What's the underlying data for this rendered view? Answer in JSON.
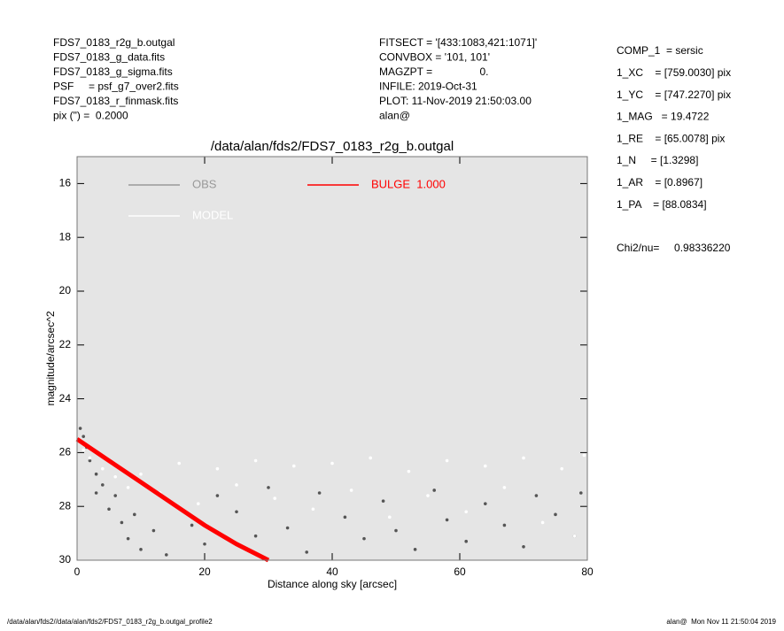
{
  "header": {
    "left": [
      "FDS7_0183_r2g_b.outgal",
      "FDS7_0183_g_data.fits",
      "FDS7_0183_g_sigma.fits",
      "PSF     = psf_g7_over2.fits",
      "FDS7_0183_r_finmask.fits",
      "pix (\") =  0.2000"
    ],
    "middle": [
      "FITSECT = '[433:1083,421:1071]'",
      "CONVBOX = '101, 101'",
      "MAGZPT =                0.",
      "INFILE: 2019-Oct-31",
      "PLOT: 11-Nov-2019 21:50:03.00",
      "alan@"
    ]
  },
  "parameters": [
    "COMP_1  = sersic",
    "1_XC    = [759.0030] pix",
    "1_YC    = [747.2270] pix",
    "1_MAG   = 19.4722",
    "1_RE    = [65.0078] pix",
    "1_N     = [1.3298]",
    "1_AR    = [0.8967]",
    "1_PA    = [88.0834]"
  ],
  "chi2": "Chi2/nu=     0.98336220",
  "footer": {
    "left": "/data/alan/fds2//data/alan/fds2/FDS7_0183_r2g_b.outgal_profile2",
    "right": "alan@  Mon Nov 11 21:50:04 2019"
  },
  "chart_data": {
    "type": "scatter",
    "title": "/data/alan/fds2/FDS7_0183_r2g_b.outgal",
    "xlabel": "Distance along sky [arcsec]",
    "ylabel": "magnitude/arcsec^2",
    "xlim": [
      0,
      80
    ],
    "ylim": [
      30,
      15
    ],
    "xticks": [
      0,
      20,
      40,
      60,
      80
    ],
    "yticks": [
      16,
      18,
      20,
      22,
      24,
      26,
      28,
      30
    ],
    "plot_background": "#e5e5e5",
    "series": [
      {
        "name": "OBS",
        "color": "#555555",
        "legend_color": "#999999",
        "x": [
          0.5,
          1,
          1.5,
          2,
          3,
          3,
          4,
          5,
          6,
          7,
          8,
          9,
          10,
          12,
          14,
          15,
          18,
          20,
          22,
          25,
          28,
          30,
          33,
          36,
          38,
          42,
          45,
          48,
          50,
          53,
          56,
          58,
          61,
          64,
          67,
          70,
          72,
          75,
          78,
          79
        ],
        "values": [
          25.1,
          25.4,
          25.8,
          26.3,
          26.8,
          27.5,
          27.2,
          28.1,
          27.6,
          28.6,
          29.2,
          28.3,
          29.6,
          28.9,
          29.8,
          27.9,
          28.7,
          29.4,
          27.6,
          28.2,
          29.1,
          27.3,
          28.8,
          29.7,
          27.5,
          28.4,
          29.2,
          27.8,
          28.9,
          29.6,
          27.4,
          28.5,
          29.3,
          27.9,
          28.7,
          29.5,
          27.6,
          28.3,
          29.1,
          27.5
        ]
      },
      {
        "name": "MODEL",
        "color": "#ffffff",
        "legend_color": "#ffffff",
        "x": [
          1,
          2,
          4,
          6,
          8,
          10,
          13,
          16,
          19,
          22,
          25,
          28,
          31,
          34,
          37,
          40,
          43,
          46,
          49,
          52,
          55,
          58,
          61,
          64,
          67,
          70,
          73,
          76,
          78,
          79.5
        ],
        "values": [
          25.9,
          26.2,
          26.6,
          26.9,
          27.3,
          26.8,
          27.5,
          26.4,
          27.9,
          26.6,
          27.2,
          26.3,
          27.7,
          26.5,
          28.1,
          26.4,
          27.4,
          26.2,
          28.4,
          26.7,
          27.6,
          26.3,
          28.2,
          26.5,
          27.3,
          26.2,
          28.6,
          26.6,
          29.1,
          26.1
        ]
      },
      {
        "name": "BULGE  1.000",
        "color": "#ff0000",
        "legend_color": "#ff0000",
        "mode": "line",
        "x": [
          0,
          5,
          10,
          15,
          20,
          25,
          30
        ],
        "values": [
          25.5,
          26.3,
          27.1,
          27.9,
          28.7,
          29.4,
          30
        ]
      }
    ]
  }
}
